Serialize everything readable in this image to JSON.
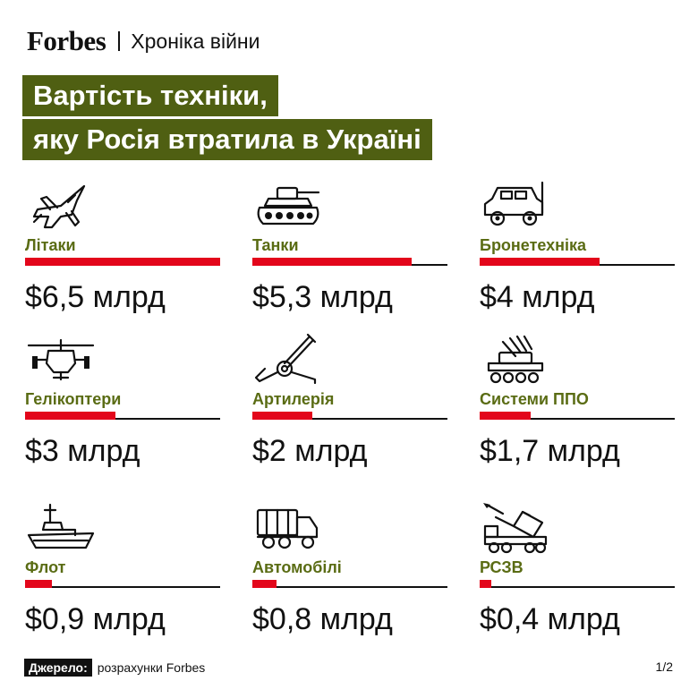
{
  "header": {
    "brand": "Forbes",
    "section": "Хроніка війни"
  },
  "title": {
    "line1": "Вартість техніки,",
    "line2": "яку Росія втратила в Україні"
  },
  "colors": {
    "title_bg": "#4f5f12",
    "label": "#5a6c14",
    "bar": "#e3061b"
  },
  "chart_data": {
    "type": "bar",
    "title": "Вартість техніки, яку Росія втратила в Україні",
    "unit": "млрд",
    "max_value": 6.5,
    "categories": [
      "Літаки",
      "Танки",
      "Бронетехніка",
      "Гелікоптери",
      "Артилерія",
      "Системи ППО",
      "Флот",
      "Автомобілі",
      "РСЗВ"
    ],
    "values": [
      6.5,
      5.3,
      4,
      3,
      2,
      1.7,
      0.9,
      0.8,
      0.4
    ],
    "value_labels": [
      "6,5",
      "5,3",
      "4",
      "3",
      "2",
      "1,7",
      "0,9",
      "0,8",
      "0,4"
    ],
    "icons": [
      "fighter-jet-icon",
      "tank-icon",
      "armored-vehicle-icon",
      "helicopter-icon",
      "artillery-icon",
      "air-defense-icon",
      "warship-icon",
      "truck-icon",
      "rocket-launcher-icon"
    ]
  },
  "footer": {
    "source_label": "Джерело:",
    "source_text": "розрахунки Forbes",
    "page": "1/2"
  }
}
